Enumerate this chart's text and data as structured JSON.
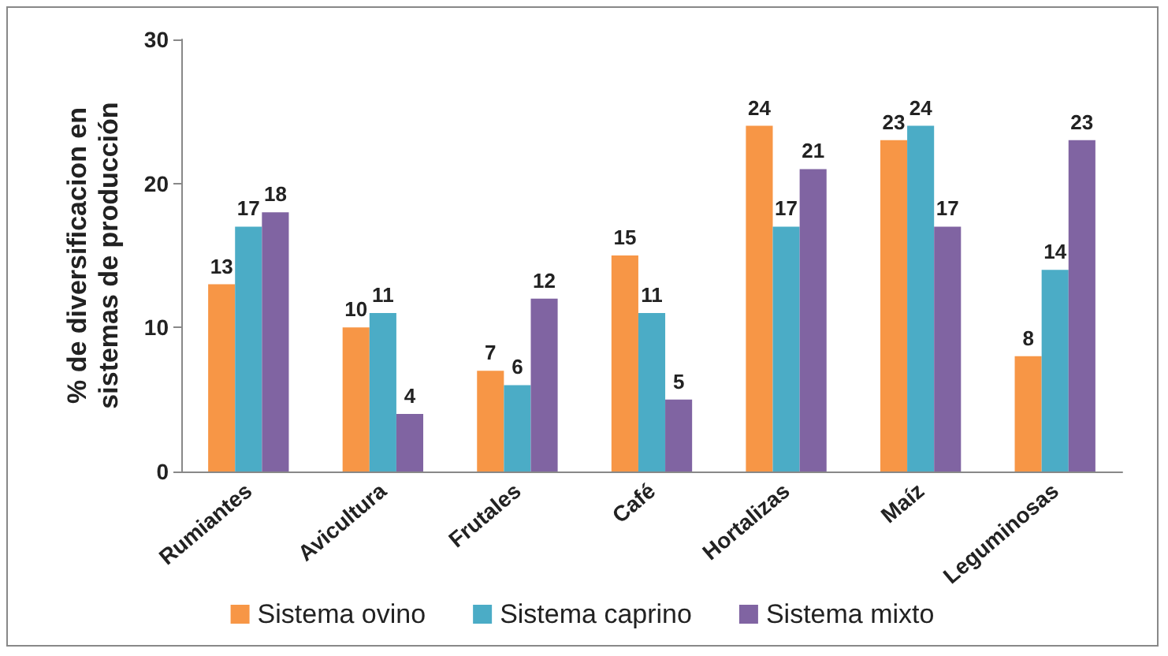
{
  "chart_data": {
    "type": "bar",
    "ylabel": "% de diversificacion en\nsistemas de producción",
    "categories": [
      "Rumiantes",
      "Avicultura",
      "Frutales",
      "Café",
      "Hortalizas",
      "Maíz",
      "Leguminosas"
    ],
    "series": [
      {
        "name": "Sistema ovino",
        "color": "#f79646",
        "values": [
          13,
          10,
          7,
          15,
          24,
          23,
          8
        ]
      },
      {
        "name": "Sistema caprino",
        "color": "#4bacc6",
        "values": [
          17,
          11,
          6,
          11,
          17,
          24,
          14
        ]
      },
      {
        "name": "Sistema mixto",
        "color": "#8064a2",
        "values": [
          18,
          4,
          12,
          5,
          21,
          17,
          23
        ]
      }
    ],
    "ylim": [
      0,
      30
    ],
    "yticks": [
      0,
      10,
      20,
      30
    ],
    "grid": false,
    "legend": "bottom",
    "data_labels": true
  }
}
